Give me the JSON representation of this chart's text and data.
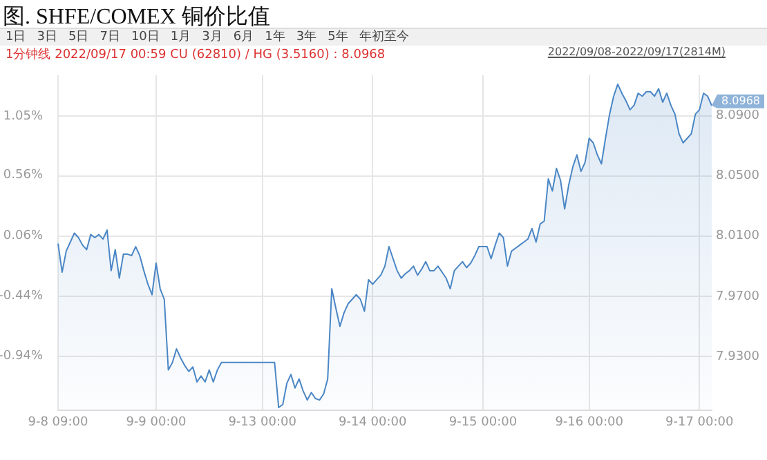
{
  "chart_data": {
    "type": "area",
    "title": "图. SHFE/COMEX 铜价比值",
    "subtitle": "1分钟线 2022/09/17 00:59 CU (62810) / HG (3.5160) : 8.0968",
    "annotations": [
      "1日",
      "3日",
      "5日",
      "7日",
      "10日",
      "1月",
      "3月",
      "6月",
      "1年",
      "3年",
      "5年",
      "年初至今",
      "2022/09/08-2022/09/17(2814M)",
      "8.0968"
    ],
    "categories": [
      "9-8 09:00",
      null,
      null,
      null,
      null,
      null,
      null,
      null,
      null,
      null,
      null,
      null,
      null,
      null,
      null,
      null,
      null,
      null,
      null,
      null,
      null,
      null,
      null,
      null,
      "9-9 00:00",
      null,
      null,
      null,
      null,
      null,
      null,
      null,
      null,
      null,
      null,
      null,
      null,
      null,
      null,
      null,
      null,
      null,
      null,
      null,
      null,
      null,
      null,
      null,
      null,
      null,
      "9-13 00:00",
      null,
      null,
      null,
      null,
      null,
      null,
      null,
      null,
      null,
      null,
      null,
      null,
      null,
      null,
      null,
      null,
      null,
      null,
      null,
      null,
      null,
      null,
      null,
      null,
      null,
      null,
      "9-14 00:00",
      null,
      null,
      null,
      null,
      null,
      null,
      null,
      null,
      null,
      null,
      null,
      null,
      null,
      null,
      null,
      null,
      null,
      null,
      null,
      null,
      null,
      null,
      null,
      null,
      null,
      null,
      "9-15 00:00",
      null,
      null,
      null,
      null,
      null,
      null,
      null,
      null,
      null,
      null,
      null,
      null,
      null,
      null,
      null,
      null,
      null,
      null,
      null,
      null,
      null,
      null,
      null,
      null,
      null,
      "9-16 00:00",
      null,
      null,
      null,
      null,
      null,
      null,
      null,
      null,
      null,
      null,
      null,
      null,
      null,
      null,
      null,
      null,
      null,
      null,
      null,
      null,
      null,
      null,
      null,
      null,
      null,
      null,
      "9-17 00:00",
      null,
      null,
      null
    ],
    "ylim": [
      7.894,
      8.117
    ],
    "yticks": [
      {
        "value": 7.93,
        "label": "7.9300"
      },
      {
        "value": 7.97,
        "label": "7.9700"
      },
      {
        "value": 8.01,
        "label": "8.0100"
      },
      {
        "value": 8.05,
        "label": "8.0500"
      },
      {
        "value": 8.09,
        "label": "8.0900"
      }
    ],
    "y2lim": [
      -1.39,
      1.39
    ],
    "y2ticks": [
      {
        "value": -0.94,
        "label": "-0.94%"
      },
      {
        "value": -0.44,
        "label": "-0.44%"
      },
      {
        "value": 0.06,
        "label": "0.06%"
      },
      {
        "value": 0.56,
        "label": "0.56%"
      },
      {
        "value": 1.05,
        "label": "1.05%"
      }
    ],
    "grid": true,
    "marker": "none",
    "line_style": "solid",
    "series": [
      {
        "color": "#4a86c5",
        "values": [
          8.005,
          7.986,
          8.0,
          8.006,
          8.012,
          8.009,
          8.004,
          8.001,
          8.011,
          8.009,
          8.011,
          8.008,
          8.014,
          7.987,
          8.001,
          7.982,
          7.998,
          7.998,
          7.997,
          8.003,
          7.997,
          7.987,
          7.978,
          7.971,
          7.992,
          7.975,
          7.968,
          7.921,
          7.926,
          7.935,
          7.929,
          7.924,
          7.92,
          7.923,
          7.913,
          7.917,
          7.913,
          7.921,
          7.913,
          7.921,
          7.926,
          7.926,
          7.926,
          7.926,
          7.926,
          7.926,
          7.926,
          7.926,
          7.926,
          7.926,
          7.926,
          7.926,
          7.926,
          7.926,
          7.896,
          7.898,
          7.912,
          7.918,
          7.909,
          7.915,
          7.907,
          7.901,
          7.906,
          7.902,
          7.901,
          7.905,
          7.915,
          7.975,
          7.962,
          7.95,
          7.959,
          7.965,
          7.968,
          7.971,
          7.968,
          7.96,
          7.981,
          7.978,
          7.981,
          7.984,
          7.99,
          8.003,
          7.995,
          7.987,
          7.982,
          7.985,
          7.987,
          7.99,
          7.984,
          7.988,
          7.993,
          7.987,
          7.987,
          7.99,
          7.986,
          7.982,
          7.975,
          7.987,
          7.99,
          7.993,
          7.989,
          7.992,
          7.997,
          8.003,
          8.003,
          8.003,
          7.995,
          8.004,
          8.012,
          8.009,
          7.99,
          8.0,
          8.002,
          8.004,
          8.006,
          8.008,
          8.015,
          8.006,
          8.018,
          8.02,
          8.048,
          8.04,
          8.055,
          8.047,
          8.028,
          8.044,
          8.056,
          8.064,
          8.053,
          8.059,
          8.075,
          8.072,
          8.064,
          8.058,
          8.075,
          8.091,
          8.103,
          8.111,
          8.105,
          8.1,
          8.094,
          8.097,
          8.105,
          8.103,
          8.106,
          8.106,
          8.103,
          8.108,
          8.099,
          8.105,
          8.097,
          8.091,
          8.078,
          8.072,
          8.075,
          8.078,
          8.091,
          8.094,
          8.105,
          8.103,
          8.0968
        ]
      }
    ]
  }
}
